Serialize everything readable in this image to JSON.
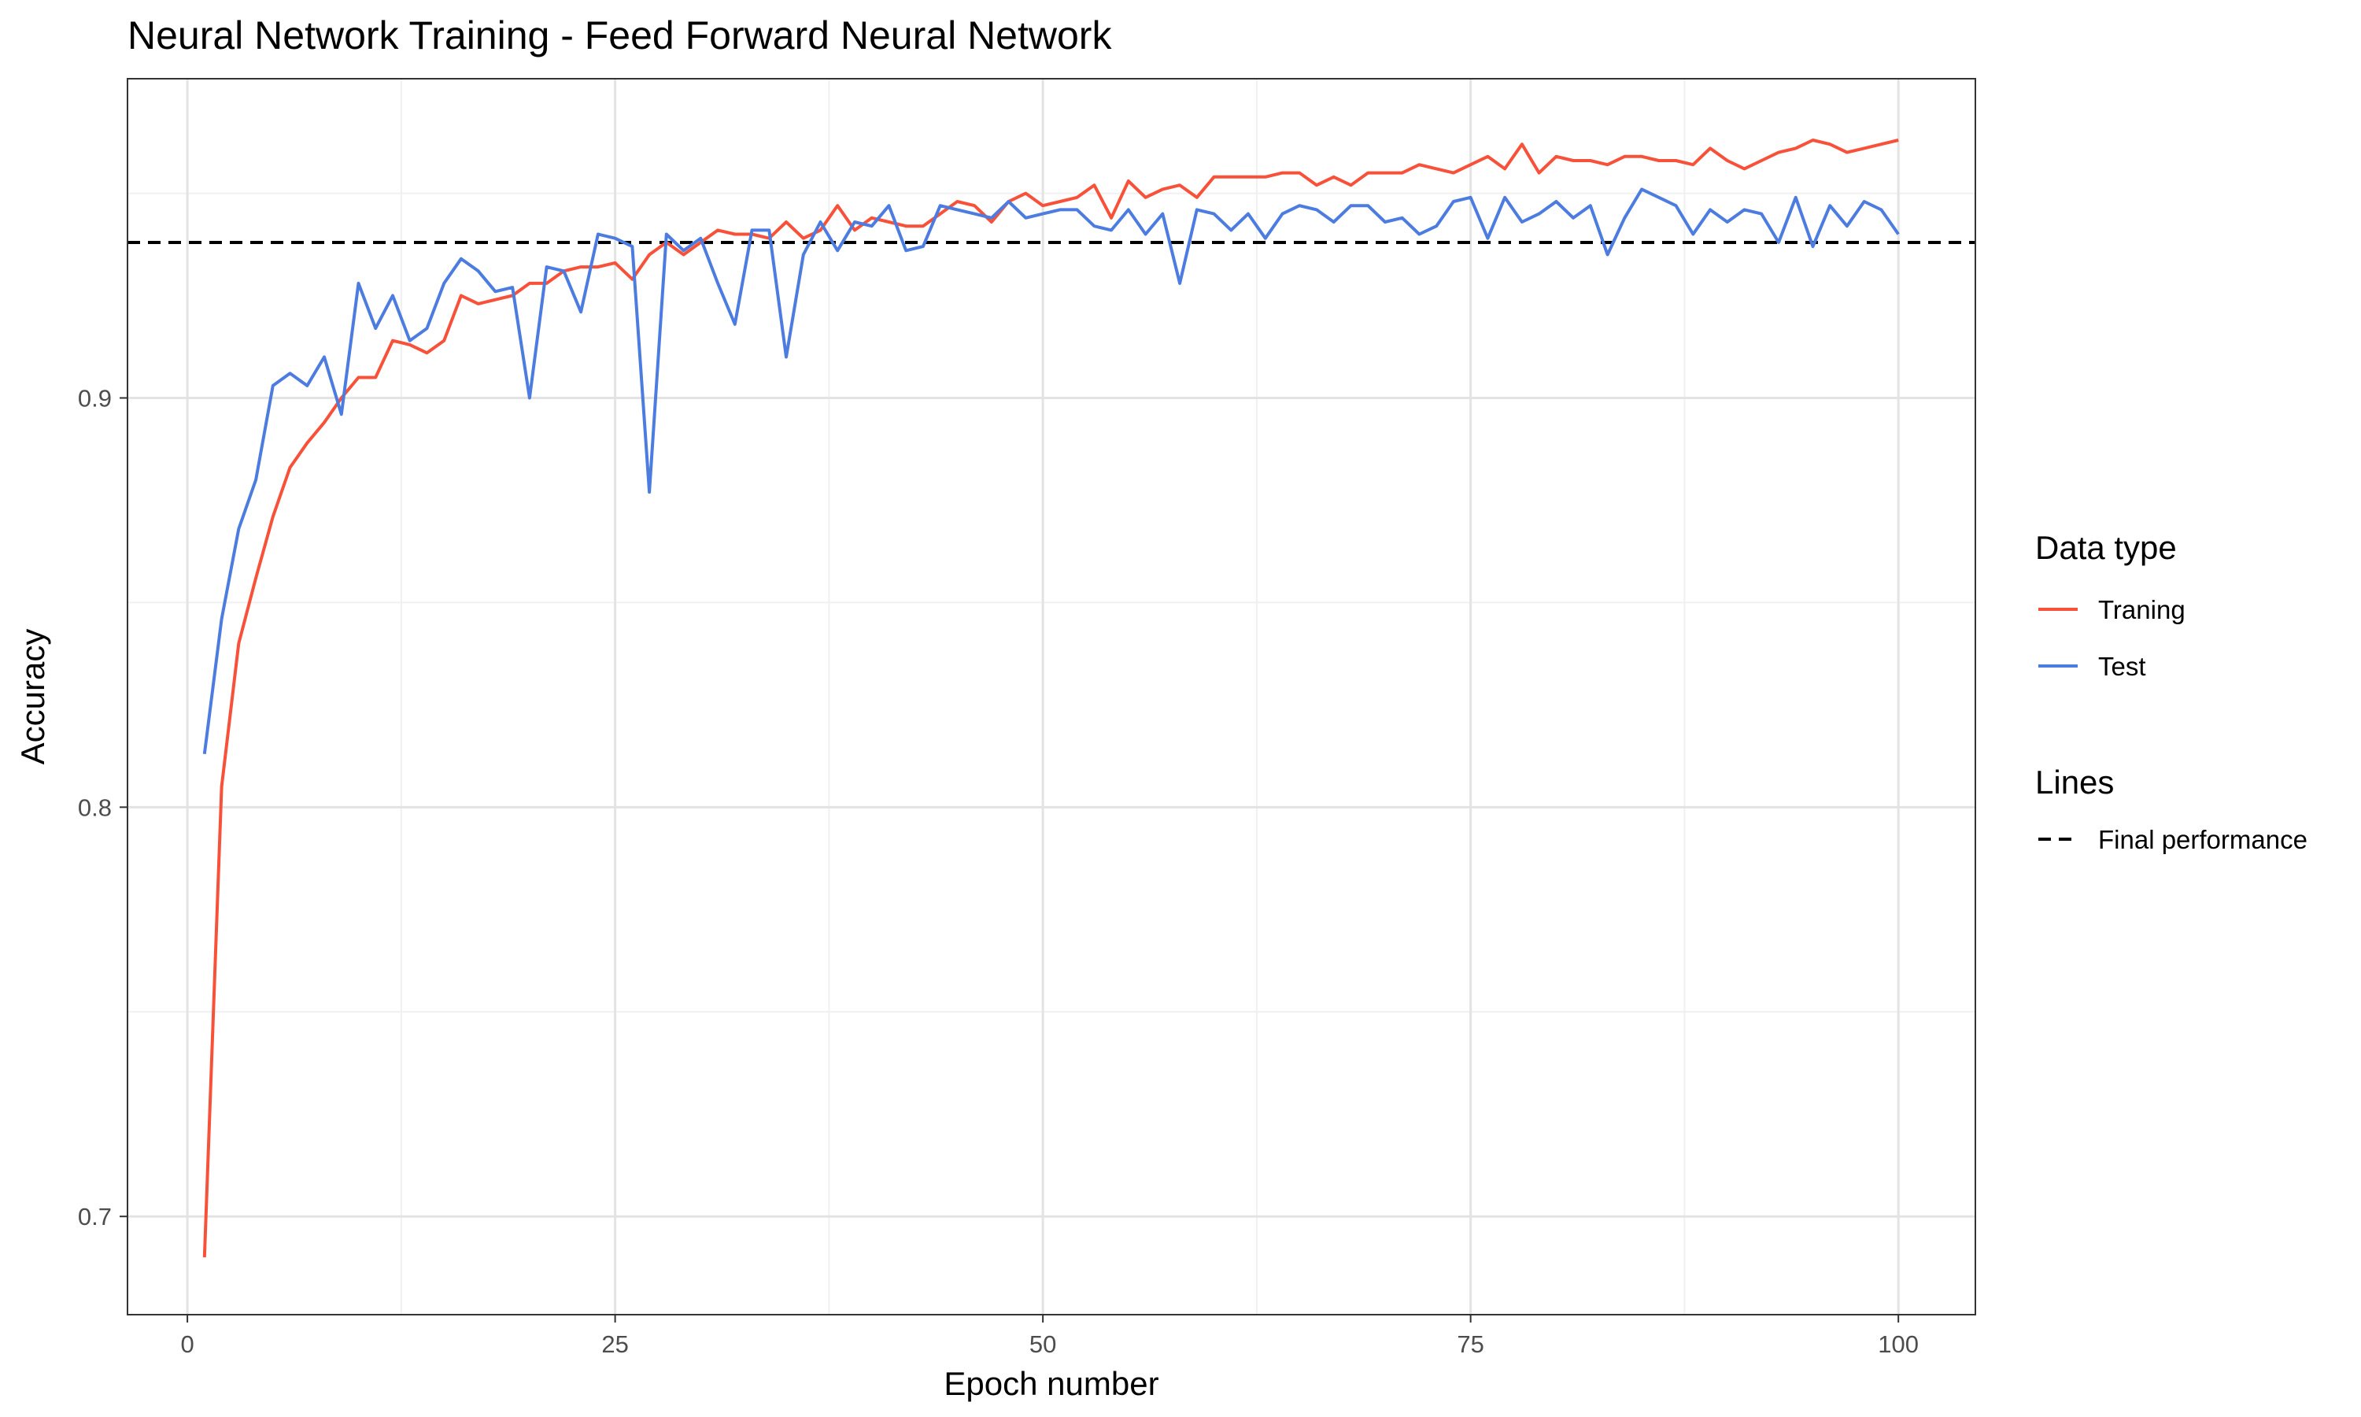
{
  "chart_data": {
    "type": "line",
    "title": "Neural Network Training - Feed Forward Neural Network",
    "xlabel": "Epoch number",
    "ylabel": "Accuracy",
    "xlim": [
      -3.5,
      104.5
    ],
    "ylim": [
      0.676,
      0.978
    ],
    "x_ticks": [
      0,
      25,
      50,
      75,
      100
    ],
    "x_tick_labels": [
      "0",
      "25",
      "50",
      "75",
      "100"
    ],
    "y_ticks": [
      0.7,
      0.8,
      0.9
    ],
    "y_tick_labels": [
      "0.7",
      "0.8",
      "0.9"
    ],
    "grid": true,
    "legend_position": "right",
    "legend_groups": [
      {
        "title": "Data type",
        "entries": [
          "Traning",
          "Test"
        ]
      },
      {
        "title": "Lines",
        "entries": [
          "Final performance"
        ]
      }
    ],
    "series": [
      {
        "name": "Traning",
        "color": "#f8513a",
        "values": [
          0.69,
          0.805,
          0.84,
          0.856,
          0.871,
          0.883,
          0.889,
          0.894,
          0.9,
          0.905,
          0.905,
          0.914,
          0.913,
          0.911,
          0.914,
          0.925,
          0.923,
          0.924,
          0.925,
          0.928,
          0.928,
          0.931,
          0.932,
          0.932,
          0.933,
          0.929,
          0.935,
          0.938,
          0.935,
          0.938,
          0.941,
          0.94,
          0.94,
          0.939,
          0.943,
          0.939,
          0.941,
          0.947,
          0.941,
          0.944,
          0.943,
          0.942,
          0.942,
          0.945,
          0.948,
          0.947,
          0.943,
          0.948,
          0.95,
          0.947,
          0.948,
          0.949,
          0.952,
          0.944,
          0.953,
          0.949,
          0.951,
          0.952,
          0.949,
          0.954,
          0.954,
          0.954,
          0.954,
          0.955,
          0.955,
          0.952,
          0.954,
          0.952,
          0.955,
          0.955,
          0.955,
          0.957,
          0.956,
          0.955,
          0.957,
          0.959,
          0.956,
          0.962,
          0.955,
          0.959,
          0.958,
          0.958,
          0.957,
          0.959,
          0.959,
          0.958,
          0.958,
          0.957,
          0.961,
          0.958,
          0.956,
          0.958,
          0.96,
          0.961,
          0.963,
          0.962,
          0.96,
          0.961,
          0.962,
          0.963
        ]
      },
      {
        "name": "Test",
        "color": "#4d7ce0",
        "values": [
          0.813,
          0.846,
          0.868,
          0.88,
          0.903,
          0.906,
          0.903,
          0.91,
          0.896,
          0.928,
          0.917,
          0.925,
          0.914,
          0.917,
          0.928,
          0.934,
          0.931,
          0.926,
          0.927,
          0.9,
          0.932,
          0.931,
          0.921,
          0.94,
          0.939,
          0.937,
          0.877,
          0.94,
          0.936,
          0.939,
          0.928,
          0.918,
          0.941,
          0.941,
          0.91,
          0.935,
          0.943,
          0.936,
          0.943,
          0.942,
          0.947,
          0.936,
          0.937,
          0.947,
          0.946,
          0.945,
          0.944,
          0.948,
          0.944,
          0.945,
          0.946,
          0.946,
          0.942,
          0.941,
          0.946,
          0.94,
          0.945,
          0.928,
          0.946,
          0.945,
          0.941,
          0.945,
          0.939,
          0.945,
          0.947,
          0.946,
          0.943,
          0.947,
          0.947,
          0.943,
          0.944,
          0.94,
          0.942,
          0.948,
          0.949,
          0.939,
          0.949,
          0.943,
          0.945,
          0.948,
          0.944,
          0.947,
          0.935,
          0.944,
          0.951,
          0.949,
          0.947,
          0.94,
          0.946,
          0.943,
          0.946,
          0.945,
          0.938,
          0.949,
          0.937,
          0.947,
          0.942,
          0.948,
          0.946,
          0.94
        ]
      }
    ],
    "reference_lines": [
      {
        "name": "Final performance",
        "y": 0.938,
        "color": "#000000",
        "style": "dashed"
      }
    ]
  }
}
